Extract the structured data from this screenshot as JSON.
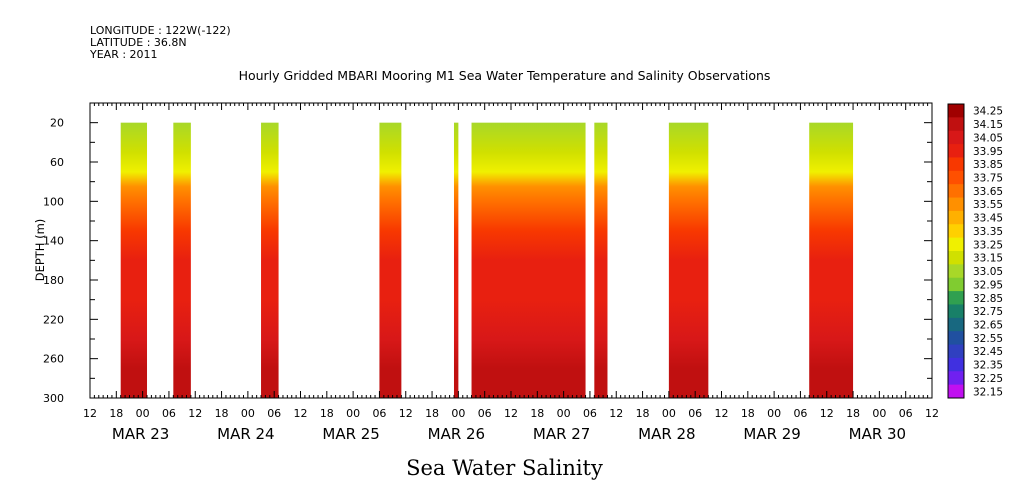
{
  "header": {
    "longitude": "LONGITUDE : 122W(-122)",
    "latitude": "LATITUDE : 36.8N",
    "year": "YEAR : 2011",
    "title": "Hourly Gridded MBARI Mooring M1 Sea Water Temperature and Salinity Observations"
  },
  "footer": {
    "variable_title": "Sea Water Salinity"
  },
  "chart_data": {
    "type": "heatmap",
    "title": "Hourly Gridded MBARI Mooring M1 Sea Water Temperature and Salinity Observations",
    "variable": "Sea Water Salinity",
    "ylabel": "DEPTH (m)",
    "ylim": [
      300,
      0
    ],
    "y_ticks": [
      20,
      60,
      100,
      140,
      180,
      220,
      260,
      300
    ],
    "x_tick_hour_labels": [
      "12",
      "18",
      "00",
      "06",
      "12",
      "18",
      "00",
      "06",
      "12",
      "18",
      "00",
      "06",
      "12",
      "18",
      "00",
      "06",
      "12",
      "18",
      "00",
      "06",
      "12",
      "18",
      "00",
      "06",
      "12",
      "18",
      "00",
      "06",
      "12",
      "18",
      "00",
      "06",
      "12"
    ],
    "x_date_labels": [
      "MAR 23",
      "MAR 24",
      "MAR 25",
      "MAR 26",
      "MAR 27",
      "MAR 28",
      "MAR 29",
      "MAR 30"
    ],
    "colorbar_levels": [
      34.25,
      34.15,
      34.05,
      33.95,
      33.85,
      33.75,
      33.65,
      33.55,
      33.45,
      33.35,
      33.25,
      33.15,
      33.05,
      32.95,
      32.85,
      32.75,
      32.65,
      32.55,
      32.45,
      32.35,
      32.25,
      32.15
    ],
    "colorbar_colors": [
      "#a00000",
      "#c01010",
      "#d81818",
      "#e82010",
      "#f83800",
      "#ff5000",
      "#ff7000",
      "#ff9000",
      "#ffb000",
      "#ffd000",
      "#f0f000",
      "#d0e000",
      "#a8d828",
      "#80cc30",
      "#30a050",
      "#188068",
      "#186880",
      "#2050a0",
      "#3040c0",
      "#4030e0",
      "#7020f0",
      "#c010f0"
    ],
    "data_segments": [
      {
        "start": "MAR 22 19:00",
        "end": "MAR 23 01:00"
      },
      {
        "start": "MAR 23 07:00",
        "end": "MAR 23 11:00"
      },
      {
        "start": "MAR 24 03:00",
        "end": "MAR 24 07:00"
      },
      {
        "start": "MAR 25 06:00",
        "end": "MAR 25 11:00"
      },
      {
        "start": "MAR 25 23:00",
        "end": "MAR 26 00:00"
      },
      {
        "start": "MAR 26 03:00",
        "end": "MAR 27 05:00"
      },
      {
        "start": "MAR 27 07:00",
        "end": "MAR 27 10:00"
      },
      {
        "start": "MAR 28 00:00",
        "end": "MAR 28 09:00"
      },
      {
        "start": "MAR 29 08:00",
        "end": "MAR 29 18:00"
      }
    ],
    "depth_profile": [
      {
        "depth": 20,
        "salinity": 33.1
      },
      {
        "depth": 50,
        "salinity": 33.15
      },
      {
        "depth": 70,
        "salinity": 33.3
      },
      {
        "depth": 85,
        "salinity": 33.55
      },
      {
        "depth": 100,
        "salinity": 33.7
      },
      {
        "depth": 130,
        "salinity": 33.85
      },
      {
        "depth": 160,
        "salinity": 33.95
      },
      {
        "depth": 200,
        "salinity": 34.0
      },
      {
        "depth": 240,
        "salinity": 34.1
      },
      {
        "depth": 270,
        "salinity": 34.2
      },
      {
        "depth": 300,
        "salinity": 34.15
      }
    ]
  }
}
